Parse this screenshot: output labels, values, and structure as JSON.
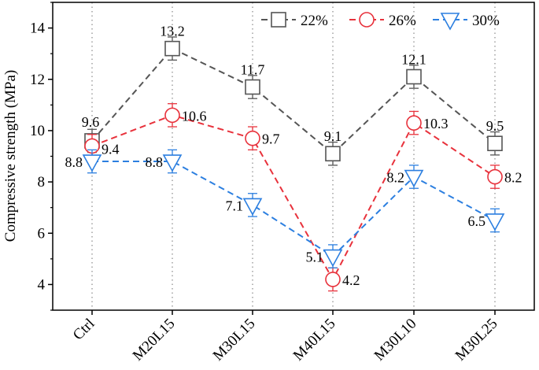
{
  "chart_data": {
    "type": "line",
    "ylabel": "Compressive strength (MPa)",
    "xlabel": "",
    "categories": [
      "Ctrl",
      "M20L15",
      "M30L15",
      "M40L15",
      "M30L10",
      "M30L25"
    ],
    "ylim": [
      3,
      15
    ],
    "yticks": [
      "4",
      "6",
      "8",
      "10",
      "12",
      "14"
    ],
    "grid": "vertical dotted",
    "legend_position": "top-right",
    "series": [
      {
        "name": "22%",
        "marker": "square",
        "color": "#555555",
        "values": [
          9.6,
          13.2,
          11.7,
          9.1,
          12.1,
          9.5
        ],
        "errors": [
          0.45,
          0.45,
          0.45,
          0.45,
          0.45,
          0.45
        ],
        "labels": [
          "9.6",
          "13.2",
          "11.7",
          "9.1",
          "12.1",
          "9.5"
        ]
      },
      {
        "name": "26%",
        "marker": "circle",
        "color": "#e8323c",
        "values": [
          9.4,
          10.6,
          9.7,
          4.2,
          10.3,
          8.2
        ],
        "errors": [
          0.45,
          0.45,
          0.45,
          0.45,
          0.45,
          0.45
        ],
        "labels": [
          "9.4",
          "10.6",
          "9.7",
          "4.2",
          "10.3",
          "8.2"
        ]
      },
      {
        "name": "30%",
        "marker": "triangle-down",
        "color": "#2c7fe0",
        "values": [
          8.8,
          8.8,
          7.1,
          5.1,
          8.2,
          6.5
        ],
        "errors": [
          0.45,
          0.45,
          0.45,
          0.45,
          0.45,
          0.45
        ],
        "labels": [
          "8.8",
          "8.8",
          "7.1",
          "5.1",
          "8.2",
          "6.5"
        ]
      }
    ]
  }
}
